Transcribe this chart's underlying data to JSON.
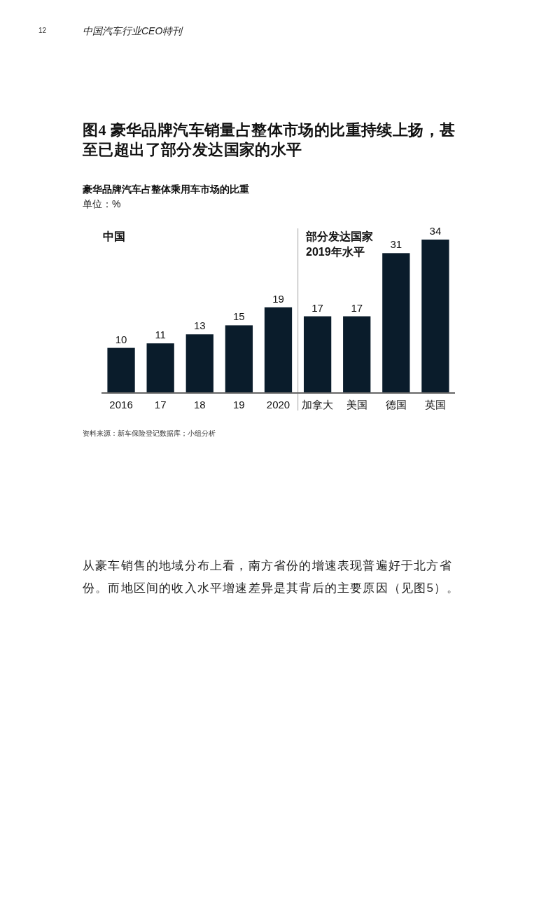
{
  "chart_data": {
    "type": "bar",
    "title": "图4 豪华品牌汽车销量占整体市场的比重持续上扬，甚至已超出了部分发达国家的水平",
    "subtitle": "豪华品牌汽车占整体乘用车市场的比重",
    "ylabel": "单位：%",
    "categories": [
      "2016",
      "17",
      "18",
      "19",
      "2020",
      "加拿大",
      "美国",
      "德国",
      "英国"
    ],
    "values": [
      10,
      11,
      13,
      15,
      19,
      17,
      17,
      31,
      34
    ],
    "color": "#0a1c2b",
    "data_labels": true,
    "annotations": [
      "12",
      "中国汽车行业CEO特刊",
      "中国",
      "部分发达国家\n2019年水平",
      "资料来源：新车保险登记数据库；小组分析",
      "从豪车销售的地域分布上看，南方省份的增速表现普遍好于北方省份。而地区间的收入水平增速差异是其背后的主要原因（见图5）。"
    ]
  }
}
